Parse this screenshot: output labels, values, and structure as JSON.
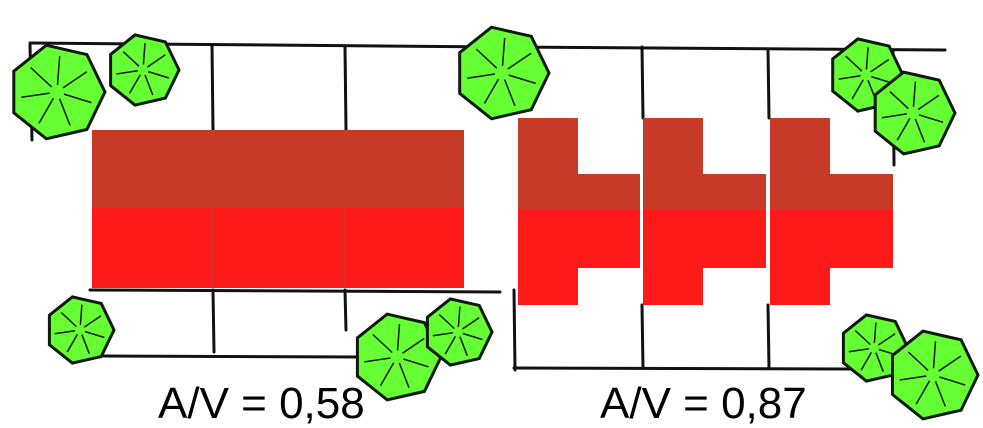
{
  "diagrams": [
    {
      "id": "compact",
      "ratio_label": "A/V = 0,58"
    },
    {
      "id": "stepped",
      "ratio_label": "A/V = 0,87"
    }
  ],
  "colors": {
    "upper_half": "#c83a28",
    "lower_half": "#ff1a1a",
    "plot_lines": "#111111",
    "tree_fill": "#66ff33",
    "tree_outline": "#0d1a0d",
    "background": "#ffffff"
  },
  "icons": [
    "tree-icon"
  ]
}
